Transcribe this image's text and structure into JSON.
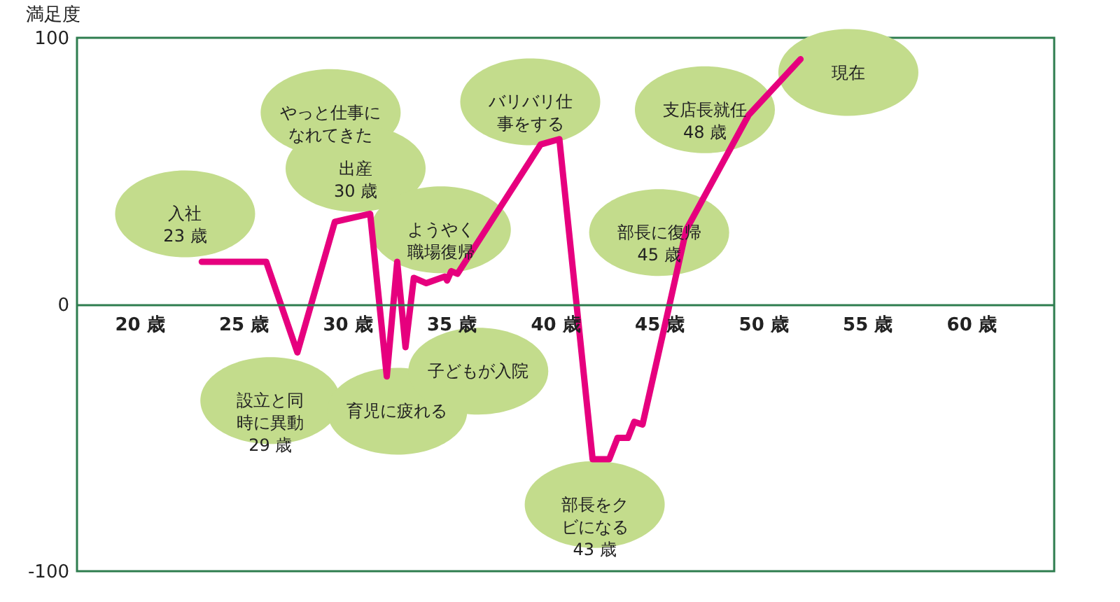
{
  "chart_data": {
    "type": "line",
    "ylabel": "満足度",
    "x": [
      23,
      26.1,
      27.6,
      29.4,
      31.1,
      31.9,
      32.4,
      32.8,
      33.2,
      33.8,
      34.7,
      34.8,
      35.0,
      35.3,
      39.3,
      40.2,
      41.8,
      42.6,
      43.0,
      43.5,
      43.8,
      44.2,
      45.5,
      46.3,
      49.3,
      51.8
    ],
    "series": [
      {
        "color": "#e6007e",
        "values": [
          16,
          16,
          -18,
          31,
          34,
          -27,
          16,
          -16,
          10,
          8,
          10.5,
          9,
          12.5,
          11.5,
          60,
          62,
          -58,
          -58,
          -50,
          -50,
          -44,
          -45,
          0,
          28,
          71,
          92
        ]
      }
    ],
    "xlim": [
      17,
      64
    ],
    "ylim": [
      -100,
      100
    ],
    "xticks": [
      {
        "value": 20,
        "label": "20 歳"
      },
      {
        "value": 25,
        "label": "25 歳"
      },
      {
        "value": 30,
        "label": "30 歳"
      },
      {
        "value": 35,
        "label": "35 歳"
      },
      {
        "value": 40,
        "label": "40 歳"
      },
      {
        "value": 45,
        "label": "45 歳"
      },
      {
        "value": 50,
        "label": "50 歳"
      },
      {
        "value": 55,
        "label": "55 歳"
      },
      {
        "value": 60,
        "label": "60 歳"
      }
    ],
    "yticks": [
      -100,
      0,
      100
    ],
    "marker": "none",
    "line_style": "solid",
    "annotations": [
      "入社23 歳",
      "やっと仕事になれてきた",
      "出産30 歳",
      "ようやく職場復帰",
      "バリバリ仕事をする",
      "支店長就任48 歳",
      "現在",
      "部長に復帰45 歳",
      "設立と同時に異動29 歳",
      "育児に疲れる",
      "子どもが入院",
      "部長をクビになる43 歳"
    ]
  }
}
